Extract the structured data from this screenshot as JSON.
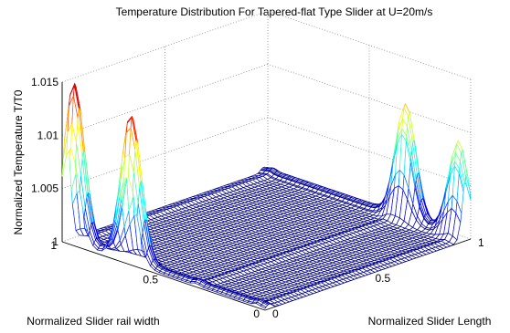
{
  "chart_data": {
    "type": "surface",
    "title": "Temperature Distribution For Tapered-flat Type Slider at U=20m/s",
    "xlabel": "Normalized Slider Length",
    "ylabel": "Normalized Slider rail width",
    "zlabel": "Normalized Temperature T/T0",
    "xlim": [
      0,
      1
    ],
    "ylim": [
      0,
      1
    ],
    "zlim": [
      1,
      1.015
    ],
    "x_ticks": [
      "0",
      "0.5",
      "1"
    ],
    "y_ticks": [
      "0",
      "0.5",
      "1"
    ],
    "z_ticks": [
      "1",
      "1.005",
      "1.01",
      "1.015"
    ],
    "grid": true,
    "colormap": "jet",
    "peaks": [
      {
        "x": 0.02,
        "y": 0.96,
        "z": 1.0145
      },
      {
        "x": 0.02,
        "y": 0.68,
        "z": 1.0135
      },
      {
        "x": 0.98,
        "y": 0.3,
        "z": 1.0105
      },
      {
        "x": 0.98,
        "y": 0.04,
        "z": 1.0085
      }
    ]
  }
}
